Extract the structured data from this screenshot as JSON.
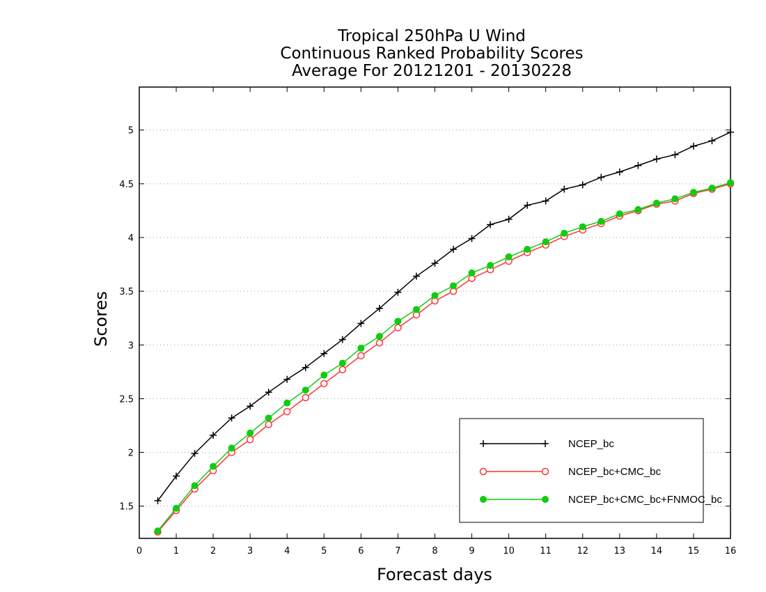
{
  "chart_data": {
    "type": "line",
    "title": [
      "Tropical 250hPa U Wind",
      "Continuous Ranked Probability Scores",
      "Average For 20121201 - 20130228"
    ],
    "xlabel": "Forecast days",
    "ylabel": "Scores",
    "xlim": [
      0,
      16
    ],
    "ylim": [
      1.2,
      5.4
    ],
    "xticks": [
      0,
      1,
      2,
      3,
      4,
      5,
      6,
      7,
      8,
      9,
      10,
      11,
      12,
      13,
      14,
      15,
      16
    ],
    "yticks": [
      1.5,
      2,
      2.5,
      3,
      3.5,
      4,
      4.5,
      5
    ],
    "ytick_labels": [
      "1.5",
      "2",
      "2.5",
      "3",
      "3.5",
      "4",
      "4.5",
      "5"
    ],
    "grid": "horizontal dotted",
    "legend_position": "bottom-right",
    "x": [
      0.5,
      1,
      1.5,
      2,
      2.5,
      3,
      3.5,
      4,
      4.5,
      5,
      5.5,
      6,
      6.5,
      7,
      7.5,
      8,
      8.5,
      9,
      9.5,
      10,
      10.5,
      11,
      11.5,
      12,
      12.5,
      13,
      13.5,
      14,
      14.5,
      15,
      15.5,
      16
    ],
    "series": [
      {
        "name": "NCEP_bc",
        "color": "#000000",
        "marker": "plus",
        "values": [
          1.55,
          1.78,
          1.99,
          2.16,
          2.32,
          2.43,
          2.56,
          2.68,
          2.79,
          2.92,
          3.05,
          3.2,
          3.34,
          3.49,
          3.64,
          3.76,
          3.89,
          3.99,
          4.12,
          4.17,
          4.3,
          4.34,
          4.45,
          4.49,
          4.56,
          4.61,
          4.67,
          4.73,
          4.77,
          4.85,
          4.9,
          4.98
        ]
      },
      {
        "name": "NCEP_bc+CMC_bc",
        "color": "#ff3333",
        "marker": "open-circle",
        "values": [
          1.26,
          1.46,
          1.66,
          1.83,
          2.0,
          2.12,
          2.26,
          2.38,
          2.51,
          2.64,
          2.77,
          2.9,
          3.02,
          3.16,
          3.28,
          3.41,
          3.5,
          3.62,
          3.7,
          3.78,
          3.86,
          3.93,
          4.01,
          4.07,
          4.13,
          4.2,
          4.25,
          4.31,
          4.34,
          4.41,
          4.45,
          4.5
        ]
      },
      {
        "name": "NCEP_bc+CMC_bc+FNMOC_bc",
        "color": "#11cc11",
        "marker": "filled-circle",
        "values": [
          1.27,
          1.48,
          1.69,
          1.87,
          2.04,
          2.18,
          2.32,
          2.46,
          2.58,
          2.72,
          2.83,
          2.97,
          3.08,
          3.22,
          3.33,
          3.46,
          3.55,
          3.67,
          3.74,
          3.82,
          3.89,
          3.96,
          4.04,
          4.1,
          4.15,
          4.22,
          4.26,
          4.32,
          4.36,
          4.42,
          4.46,
          4.51
        ]
      }
    ]
  }
}
